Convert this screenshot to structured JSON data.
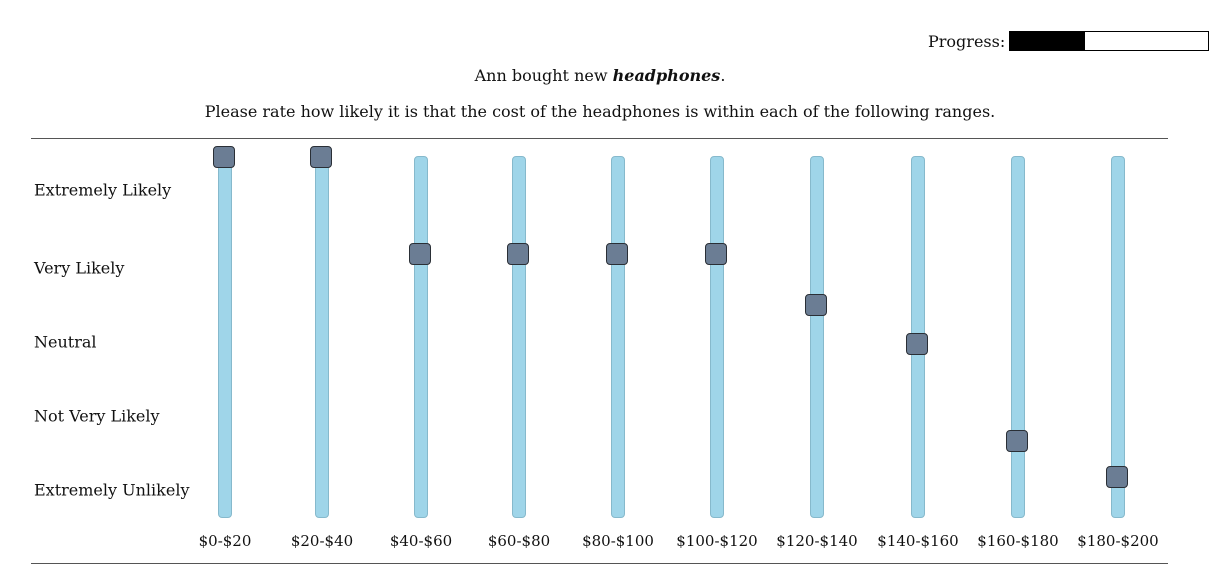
{
  "progress": {
    "label": "Progress:",
    "fraction": 0.38
  },
  "prompt": {
    "before": "Ann bought new ",
    "item": "headphones",
    "after": "."
  },
  "question": "Please rate how likely it is that the cost of the headphones is within each of the following ranges.",
  "scale_labels": [
    "Extremely Likely",
    "Very Likely",
    "Neutral",
    "Not Very Likely",
    "Extremely Unlikely"
  ],
  "sliders": [
    {
      "range": "$0-$20",
      "value": 1.0
    },
    {
      "range": "$20-$40",
      "value": 1.0
    },
    {
      "range": "$40-$60",
      "value": 0.73
    },
    {
      "range": "$60-$80",
      "value": 0.73
    },
    {
      "range": "$80-$100",
      "value": 0.73
    },
    {
      "range": "$100-$120",
      "value": 0.73
    },
    {
      "range": "$120-$140",
      "value": 0.59
    },
    {
      "range": "$140-$160",
      "value": 0.48
    },
    {
      "range": "$160-$180",
      "value": 0.21
    },
    {
      "range": "$180-$200",
      "value": 0.11
    }
  ],
  "colors": {
    "track": "#9fd5e9",
    "handle": "#6b7d94",
    "progress_fill": "#000000"
  }
}
